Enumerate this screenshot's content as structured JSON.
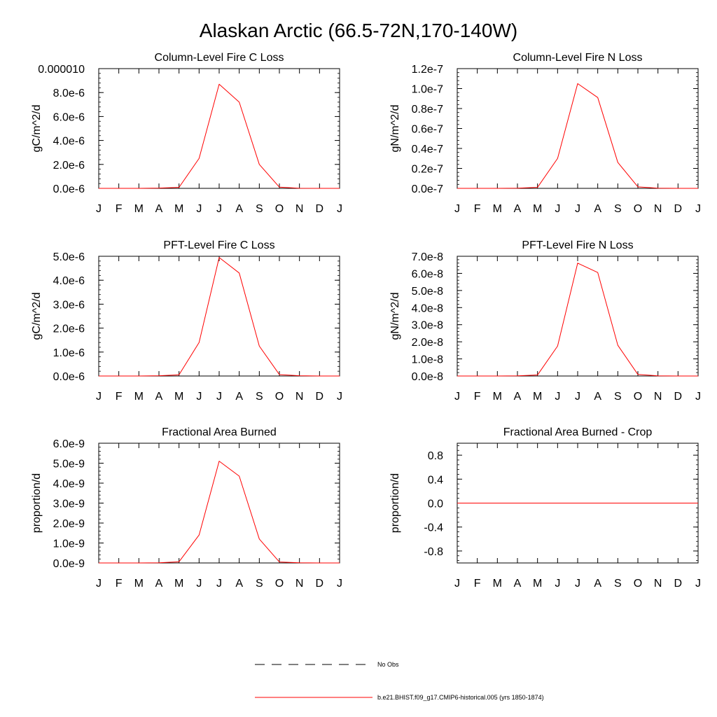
{
  "figure": {
    "title": "Alaskan Arctic (66.5-72N,170-140W)"
  },
  "chart_data": [
    {
      "type": "line",
      "title": "Column-Level Fire C Loss",
      "ylabel": "gC/m^2/d",
      "categories": [
        "J",
        "F",
        "M",
        "A",
        "M",
        "J",
        "J",
        "A",
        "S",
        "O",
        "N",
        "D",
        "J"
      ],
      "ylim": [
        0,
        1e-05
      ],
      "yticks": [
        0,
        2e-06,
        4e-06,
        6e-06,
        8e-06,
        1e-05
      ],
      "ytick_labels": [
        "0.0e-6",
        "2.0e-6",
        "4.0e-6",
        "6.0e-6",
        "8.0e-6",
        "0.000010"
      ],
      "series": [
        {
          "name": "b.e21.BHIST.f09_g17.CMIP6-historical.005 (yrs 1850-1874)",
          "color": "#ff0000",
          "values": [
            0,
            0,
            0,
            2e-08,
            8e-08,
            2.5e-06,
            8.7e-06,
            7.2e-06,
            2e-06,
            1e-07,
            1e-08,
            0,
            0
          ]
        }
      ]
    },
    {
      "type": "line",
      "title": "Column-Level Fire N Loss",
      "ylabel": "gN/m^2/d",
      "categories": [
        "J",
        "F",
        "M",
        "A",
        "M",
        "J",
        "J",
        "A",
        "S",
        "O",
        "N",
        "D",
        "J"
      ],
      "ylim": [
        0,
        1.2e-07
      ],
      "yticks": [
        0,
        2e-08,
        4e-08,
        6e-08,
        8e-08,
        1e-07,
        1.2e-07
      ],
      "ytick_labels": [
        "0.0e-7",
        "0.2e-7",
        "0.4e-7",
        "0.6e-7",
        "0.8e-7",
        "1.0e-7",
        "1.2e-7"
      ],
      "series": [
        {
          "name": "b.e21.BHIST.f09_g17.CMIP6-historical.005 (yrs 1850-1874)",
          "color": "#ff0000",
          "values": [
            0,
            0,
            0,
            2e-10,
            1e-09,
            3e-08,
            1.05e-07,
            9.1e-08,
            2.6e-08,
            1.5e-09,
            2e-10,
            0,
            0
          ]
        }
      ]
    },
    {
      "type": "line",
      "title": "PFT-Level Fire C Loss",
      "ylabel": "gC/m^2/d",
      "categories": [
        "J",
        "F",
        "M",
        "A",
        "M",
        "J",
        "J",
        "A",
        "S",
        "O",
        "N",
        "D",
        "J"
      ],
      "ylim": [
        0,
        5e-06
      ],
      "yticks": [
        0,
        1e-06,
        2e-06,
        3e-06,
        4e-06,
        5e-06
      ],
      "ytick_labels": [
        "0.0e-6",
        "1.0e-6",
        "2.0e-6",
        "3.0e-6",
        "4.0e-6",
        "5.0e-6"
      ],
      "series": [
        {
          "name": "b.e21.BHIST.f09_g17.CMIP6-historical.005 (yrs 1850-1874)",
          "color": "#ff0000",
          "values": [
            0,
            0,
            0,
            1e-08,
            5e-08,
            1.4e-06,
            4.95e-06,
            4.3e-06,
            1.25e-06,
            6e-08,
            1e-08,
            0,
            0
          ]
        }
      ]
    },
    {
      "type": "line",
      "title": "PFT-Level Fire N Loss",
      "ylabel": "gN/m^2/d",
      "categories": [
        "J",
        "F",
        "M",
        "A",
        "M",
        "J",
        "J",
        "A",
        "S",
        "O",
        "N",
        "D",
        "J"
      ],
      "ylim": [
        0,
        7e-08
      ],
      "yticks": [
        0,
        1e-08,
        2e-08,
        3e-08,
        4e-08,
        5e-08,
        6e-08,
        7e-08
      ],
      "ytick_labels": [
        "0.0e-8",
        "1.0e-8",
        "2.0e-8",
        "3.0e-8",
        "4.0e-8",
        "5.0e-8",
        "6.0e-8",
        "7.0e-8"
      ],
      "series": [
        {
          "name": "b.e21.BHIST.f09_g17.CMIP6-historical.005 (yrs 1850-1874)",
          "color": "#ff0000",
          "values": [
            0,
            0,
            0,
            1e-10,
            6e-10,
            1.75e-08,
            6.6e-08,
            6.05e-08,
            1.8e-08,
            9e-10,
            1e-10,
            0,
            0
          ]
        }
      ]
    },
    {
      "type": "line",
      "title": "Fractional Area Burned",
      "ylabel": "proportion/d",
      "categories": [
        "J",
        "F",
        "M",
        "A",
        "M",
        "J",
        "J",
        "A",
        "S",
        "O",
        "N",
        "D",
        "J"
      ],
      "ylim": [
        0,
        6e-09
      ],
      "yticks": [
        0,
        1e-09,
        2e-09,
        3e-09,
        4e-09,
        5e-09,
        6e-09
      ],
      "ytick_labels": [
        "0.0e-9",
        "1.0e-9",
        "2.0e-9",
        "3.0e-9",
        "4.0e-9",
        "5.0e-9",
        "6.0e-9"
      ],
      "series": [
        {
          "name": "b.e21.BHIST.f09_g17.CMIP6-historical.005 (yrs 1850-1874)",
          "color": "#ff0000",
          "values": [
            0,
            0,
            0,
            1e-11,
            6e-11,
            1.4e-09,
            5.1e-09,
            4.35e-09,
            1.2e-09,
            5e-11,
            1e-11,
            0,
            0
          ]
        }
      ]
    },
    {
      "type": "line",
      "title": "Fractional Area Burned - Crop",
      "ylabel": "proportion/d",
      "categories": [
        "J",
        "F",
        "M",
        "A",
        "M",
        "J",
        "J",
        "A",
        "S",
        "O",
        "N",
        "D",
        "J"
      ],
      "ylim": [
        -1,
        1
      ],
      "yticks": [
        -0.8,
        -0.4,
        0,
        0.4,
        0.8
      ],
      "ytick_labels": [
        "-0.8",
        "-0.4",
        "0.0",
        "0.4",
        "0.8"
      ],
      "series": [
        {
          "name": "b.e21.BHIST.f09_g17.CMIP6-historical.005 (yrs 1850-1874)",
          "color": "#ff0000",
          "values": [
            0,
            0,
            0,
            0,
            0,
            0,
            0,
            0,
            0,
            0,
            0,
            0,
            0
          ]
        }
      ]
    }
  ],
  "legend": {
    "entries": [
      {
        "label": "No Obs",
        "style": "dashed",
        "color": "#000000"
      },
      {
        "label": "b.e21.BHIST.f09_g17.CMIP6-historical.005 (yrs 1850-1874)",
        "style": "solid",
        "color": "#ff0000"
      }
    ]
  }
}
